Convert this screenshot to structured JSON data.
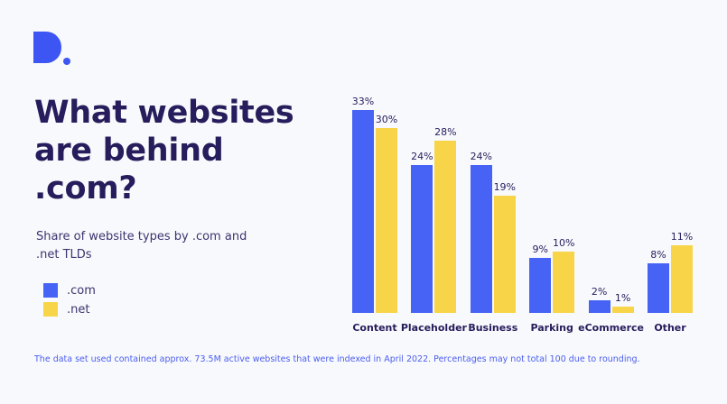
{
  "brand": {
    "logo": "d-dot-logo",
    "color": "#3d55f2"
  },
  "title": "What websites are behind .com?",
  "subtitle": "Share of website types by .com and .net TLDs",
  "legend": [
    {
      "label": ".com",
      "color": "#4663f5"
    },
    {
      "label": ".net",
      "color": "#f8d548"
    }
  ],
  "footnote": "The data set used contained approx. 73.5M active websites that were indexed in April 2022. Percentages may not total 100 due to rounding.",
  "chart_data": {
    "type": "bar",
    "title": "What websites are behind .com?",
    "subtitle": "Share of website types by .com and .net TLDs",
    "xlabel": "",
    "ylabel": "",
    "categories": [
      "Content",
      "Placeholder",
      "Business",
      "Parking",
      "eCommerce",
      "Other"
    ],
    "series": [
      {
        "name": ".com",
        "color": "#4663f5",
        "values": [
          33,
          24,
          24,
          9,
          2,
          8
        ]
      },
      {
        "name": ".net",
        "color": "#f8d548",
        "values": [
          30,
          28,
          19,
          10,
          1,
          11
        ]
      }
    ],
    "value_labels": {
      ".com": [
        "33%",
        "24%",
        "24%",
        "9%",
        "2%",
        "8%"
      ],
      ".net": [
        "30%",
        "28%",
        "19%",
        "10%",
        "1%",
        "11%"
      ]
    },
    "ylim": [
      0,
      33
    ],
    "grid": false,
    "legend_position": "left"
  }
}
